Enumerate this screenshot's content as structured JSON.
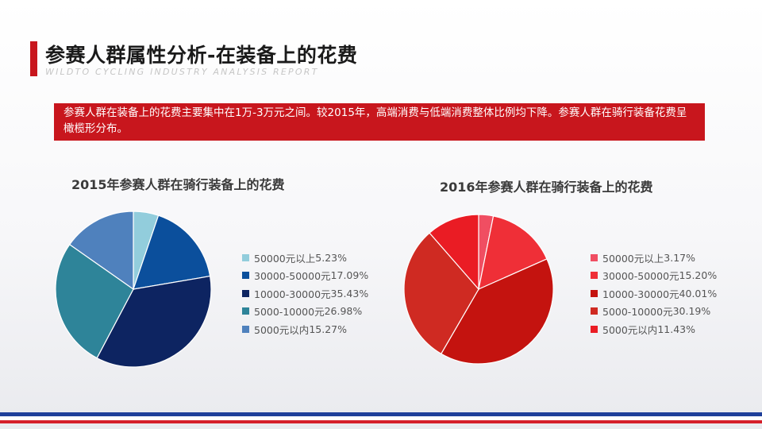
{
  "title": "参赛人群属性分析-在装备上的花费",
  "subtitle": "WILDTO CYCLING INDUSTRY ANALYSIS REPORT",
  "summary": "参赛人群在装备上的花费主要集中在1万-3万元之间。较2015年，高端消费与低端消费整体比例均下降。参赛人群在骑行装备花费呈橄榄形分布。",
  "chart_data": [
    {
      "type": "pie",
      "title": "2015年参赛人群在骑行装备上的花费",
      "legend_position": "right",
      "slices": [
        {
          "label": "50000元以上",
          "value": 5.23,
          "display": "5.23%",
          "color": "#92cddc"
        },
        {
          "label": "30000-50000元",
          "value": 17.09,
          "display": "17.09%",
          "color": "#0b4f9c"
        },
        {
          "label": "10000-30000元",
          "value": 35.43,
          "display": "35.43%",
          "color": "#0d2461"
        },
        {
          "label": "5000-10000元",
          "value": 26.98,
          "display": "26.98%",
          "color": "#2e8499"
        },
        {
          "label": "5000元以内",
          "value": 15.27,
          "display": "15.27%",
          "color": "#4f81bd"
        }
      ]
    },
    {
      "type": "pie",
      "title": "2016年参赛人群在骑行装备上的花费",
      "legend_position": "right",
      "slices": [
        {
          "label": "50000元以上",
          "value": 3.17,
          "display": "3.17%",
          "color": "#f04e62"
        },
        {
          "label": "30000-50000元",
          "value": 15.2,
          "display": "15.20%",
          "color": "#ef2f37"
        },
        {
          "label": "10000-30000元",
          "value": 40.01,
          "display": "40.01%",
          "color": "#c4130f"
        },
        {
          "label": "5000-10000元",
          "value": 30.19,
          "display": "30.19%",
          "color": "#cf2a22"
        },
        {
          "label": "5000元以内",
          "value": 11.43,
          "display": "11.43%",
          "color": "#ea1c24"
        }
      ]
    }
  ]
}
